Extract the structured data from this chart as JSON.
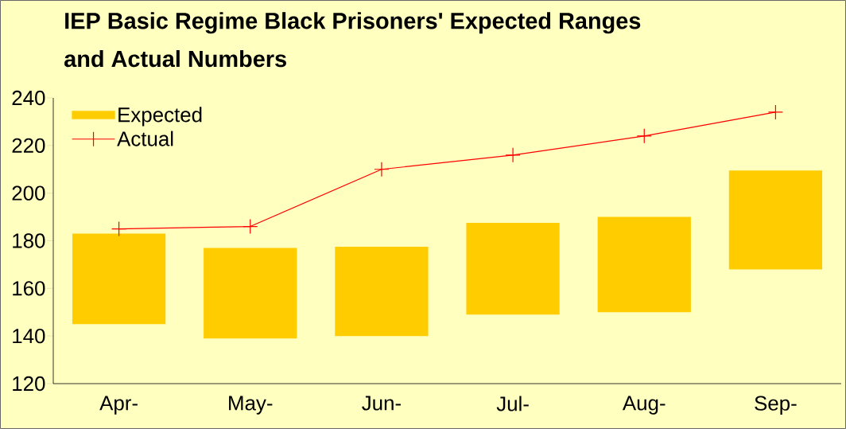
{
  "chart_data": {
    "type": "bar",
    "title": "IEP Basic Regime Black Prisoners' Expected Ranges and Actual Numbers",
    "categories": [
      "Apr-",
      "May-",
      "Jun-",
      "Jul-",
      "Aug-",
      "Sep-"
    ],
    "series": [
      {
        "name": "Expected",
        "color": "#ffcc00",
        "base": [
          145,
          139,
          140,
          149,
          150,
          168
        ],
        "values": [
          38,
          38,
          37.5,
          38.5,
          40,
          41.5
        ]
      },
      {
        "name": "Actual",
        "type": "line",
        "color": "#ff0000",
        "marker": "cross",
        "values": [
          185,
          186,
          210,
          216,
          224,
          234
        ]
      }
    ],
    "ylim": [
      120,
      240
    ],
    "yticks": [
      120,
      140,
      160,
      180,
      200,
      220,
      240
    ],
    "legend": "top left"
  }
}
